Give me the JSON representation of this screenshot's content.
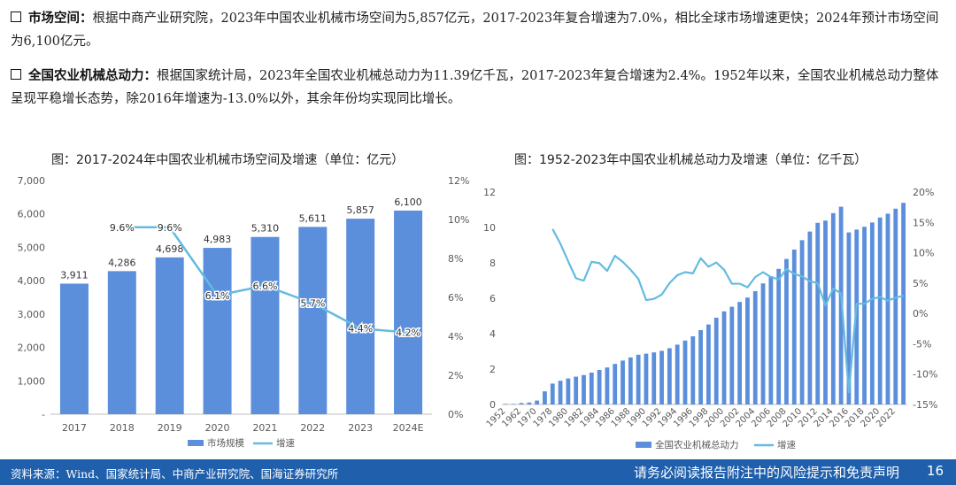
{
  "bullets": [
    {
      "head": "市场空间：",
      "text": "根据中商产业研究院，2023年中国农业机械市场空间为5,857亿元，2017-2023年复合增速为7.0%，相比全球市场增速更快；2024年预计市场空间为6,100亿元。"
    },
    {
      "head": "全国农业机械总动力：",
      "text": "根据国家统计局，2023年全国农业机械总动力为11.39亿千瓦，2017-2023年复合增速为2.4%。1952年以来，全国农业机械总动力整体呈现平稳增长态势，除2016年增速为-13.0%以外，其余年份均实现同比增长。"
    }
  ],
  "chart1_title": "图：2017-2024年中国农业机械市场空间及增速（单位：亿元）",
  "chart2_title": "图：1952-2023年中国农业机械总动力及增速（单位：亿千瓦）",
  "colors": {
    "bar": "#5b8fdb",
    "line": "#63bbe0",
    "footer": "#1f5fab"
  },
  "chart_data": [
    {
      "type": "bar",
      "categories": [
        "2017",
        "2018",
        "2019",
        "2020",
        "2021",
        "2022",
        "2023",
        "2024E"
      ],
      "series": [
        {
          "name": "市场规模",
          "type": "bar",
          "axis": "left",
          "values": [
            3911,
            4286,
            4698,
            4983,
            5310,
            5611,
            5857,
            6100
          ]
        },
        {
          "name": "增速",
          "type": "line",
          "axis": "right",
          "values": [
            null,
            9.6,
            9.6,
            6.1,
            6.6,
            5.7,
            4.4,
            4.2
          ]
        }
      ],
      "bar_labels": [
        "3,911",
        "4,286",
        "4,698",
        "4,983",
        "5,310",
        "5,611",
        "5,857",
        "6,100"
      ],
      "line_labels": [
        null,
        "9.6%",
        "9.6%",
        "6.1%",
        "6.6%",
        "5.7%",
        "4.4%",
        "4.2%"
      ],
      "ylim": [
        0,
        7000
      ],
      "ylim_right": [
        0,
        12
      ],
      "yticks": [
        "-",
        "1,000",
        "2,000",
        "3,000",
        "4,000",
        "5,000",
        "6,000",
        "7,000"
      ],
      "yticks_right": [
        "0%",
        "2%",
        "4%",
        "6%",
        "8%",
        "10%",
        "12%"
      ],
      "legend": [
        "市场规模",
        "增速"
      ]
    },
    {
      "type": "bar",
      "x": [
        1952,
        1957,
        1962,
        1965,
        1970,
        1975,
        1978,
        1979,
        1980,
        1981,
        1982,
        1983,
        1984,
        1985,
        1986,
        1987,
        1988,
        1989,
        1990,
        1991,
        1992,
        1993,
        1994,
        1995,
        1996,
        1997,
        1998,
        1999,
        2000,
        2001,
        2002,
        2003,
        2004,
        2005,
        2006,
        2007,
        2008,
        2009,
        2010,
        2011,
        2012,
        2013,
        2014,
        2015,
        2016,
        2017,
        2018,
        2019,
        2020,
        2021,
        2022,
        2023
      ],
      "xticks": [
        "1952",
        "1962",
        "1970",
        "1978",
        "1980",
        "1982",
        "1984",
        "1986",
        "1988",
        "1990",
        "1992",
        "1994",
        "1996",
        "1998",
        "2000",
        "2002",
        "2004",
        "2006",
        "2008",
        "2010",
        "2012",
        "2014",
        "2016",
        "2018",
        "2020",
        "2022"
      ],
      "series": [
        {
          "name": "全国农业机械总动力",
          "type": "bar",
          "axis": "left",
          "values": [
            0.002,
            0.012,
            0.08,
            0.11,
            0.22,
            0.74,
            1.18,
            1.34,
            1.47,
            1.57,
            1.66,
            1.8,
            1.95,
            2.09,
            2.29,
            2.48,
            2.66,
            2.81,
            2.87,
            2.94,
            3.03,
            3.18,
            3.38,
            3.61,
            3.85,
            4.2,
            4.52,
            4.9,
            5.26,
            5.52,
            5.79,
            6.04,
            6.4,
            6.84,
            7.25,
            7.66,
            8.22,
            8.75,
            9.28,
            9.77,
            10.26,
            10.39,
            10.81,
            11.17,
            9.72,
            9.88,
            10.04,
            10.28,
            10.56,
            10.78,
            11.06,
            11.39
          ]
        },
        {
          "name": "增速",
          "type": "line",
          "axis": "right",
          "values": [
            null,
            null,
            null,
            null,
            null,
            null,
            13.9,
            11.5,
            8.6,
            5.8,
            5.4,
            8.5,
            8.3,
            7.0,
            9.5,
            8.5,
            7.2,
            5.7,
            2.2,
            2.4,
            3.1,
            5.0,
            6.3,
            6.8,
            6.6,
            9.1,
            7.7,
            8.4,
            7.2,
            4.9,
            4.9,
            4.3,
            6.0,
            6.8,
            6.0,
            5.6,
            7.3,
            6.5,
            6.1,
            5.3,
            5.0,
            1.3,
            4.1,
            3.3,
            -13.0,
            1.6,
            1.6,
            2.4,
            2.7,
            2.1,
            2.6,
            2.9
          ]
        }
      ],
      "ylim": [
        0,
        12
      ],
      "ylim_right": [
        -15,
        20
      ],
      "yticks": [
        "0",
        "2",
        "4",
        "6",
        "8",
        "10",
        "12"
      ],
      "yticks_right": [
        "-15%",
        "-10%",
        "-5%",
        "0%",
        "5%",
        "10%",
        "15%",
        "20%"
      ],
      "legend": [
        "全国农业机械总动力",
        "增速"
      ]
    }
  ],
  "footer": {
    "source": "资料来源：Wind、国家统计局、中商产业研究院、国海证券研究所",
    "disclaimer": "请务必阅读报告附注中的风险提示和免责声明",
    "page": "16"
  }
}
